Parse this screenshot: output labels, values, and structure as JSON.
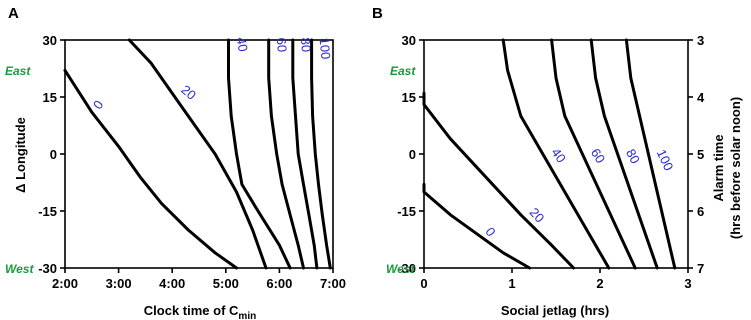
{
  "colors": {
    "curve": "#000000",
    "curve_label": "#2b2bcc",
    "direction_label": "#1a9a3a"
  },
  "chart_data": [
    {
      "type": "line",
      "panel_label": "A",
      "xlabel": "Clock time of C",
      "xlabel_sub": "min",
      "ylabel": "Δ Longitude",
      "xlim": [
        2,
        7
      ],
      "ylim": [
        -30,
        30
      ],
      "x_ticks": [
        2,
        3,
        4,
        5,
        6,
        7
      ],
      "x_tick_labels": [
        "2:00",
        "3:00",
        "4:00",
        "5:00",
        "6:00",
        "7:00"
      ],
      "y_ticks": [
        30,
        15,
        0,
        -15,
        -30
      ],
      "y_tick_labels": [
        "30",
        "15",
        "0",
        "-15",
        "-30"
      ],
      "annotations": [
        "East",
        "West"
      ],
      "series": [
        {
          "name": "0",
          "x": [
            2.0,
            2.5,
            3.0,
            3.4,
            3.8,
            4.3,
            4.8,
            5.2
          ],
          "y": [
            22,
            11,
            2,
            -6,
            -13,
            -20,
            -26,
            -30
          ]
        },
        {
          "name": "20",
          "x": [
            3.2,
            3.6,
            4.0,
            4.4,
            4.8,
            5.2,
            5.5,
            5.75
          ],
          "y": [
            30,
            24,
            16,
            8,
            0,
            -10,
            -20,
            -30
          ]
        },
        {
          "name": "40",
          "x": [
            5.05,
            5.05,
            5.1,
            5.2,
            5.3,
            5.6,
            6.0,
            6.2
          ],
          "y": [
            30,
            20,
            10,
            0,
            -8,
            -15,
            -24,
            -30
          ]
        },
        {
          "name": "60",
          "x": [
            5.8,
            5.8,
            5.85,
            5.95,
            6.05,
            6.2,
            6.35,
            6.45
          ],
          "y": [
            30,
            20,
            10,
            0,
            -8,
            -16,
            -24,
            -30
          ]
        },
        {
          "name": "80",
          "x": [
            6.25,
            6.25,
            6.3,
            6.35,
            6.45,
            6.55,
            6.65,
            6.7
          ],
          "y": [
            30,
            20,
            10,
            0,
            -8,
            -16,
            -24,
            -30
          ]
        },
        {
          "name": "100",
          "x": [
            6.6,
            6.6,
            6.62,
            6.67,
            6.73,
            6.8,
            6.88,
            6.95
          ],
          "y": [
            30,
            20,
            10,
            0,
            -8,
            -16,
            -24,
            -30
          ]
        }
      ]
    },
    {
      "type": "line",
      "panel_label": "B",
      "xlabel": "Social jetlag (hrs)",
      "ylabel": "Δ Longitude",
      "y2label": "Alarm time",
      "y2label_line2": "(hrs before solar noon)",
      "xlim": [
        0,
        3
      ],
      "ylim": [
        -30,
        30
      ],
      "x_ticks": [
        0,
        1,
        2,
        3
      ],
      "x_tick_labels": [
        "0",
        "1",
        "2",
        "3"
      ],
      "y_ticks": [
        30,
        15,
        0,
        -15,
        -30
      ],
      "y_tick_labels": [
        "30",
        "15",
        "0",
        "-15",
        "-30"
      ],
      "y2_ticks": [
        3,
        4,
        5,
        6,
        7
      ],
      "y2_tick_labels": [
        "3",
        "4",
        "5",
        "6",
        "7"
      ],
      "annotations": [
        "East",
        "West"
      ],
      "series": [
        {
          "name": "0",
          "x": [
            0.0,
            0.0,
            0.3,
            0.6,
            0.9,
            1.2
          ],
          "y": [
            -8,
            -10,
            -16,
            -21,
            -26,
            -30
          ]
        },
        {
          "name": "20",
          "x": [
            0.0,
            0.0,
            0.3,
            0.7,
            1.1,
            1.45,
            1.7
          ],
          "y": [
            16,
            13,
            4,
            -6,
            -16,
            -24,
            -30
          ]
        },
        {
          "name": "40",
          "x": [
            0.9,
            0.95,
            1.1,
            1.35,
            1.6,
            1.85,
            2.1
          ],
          "y": [
            30,
            22,
            10,
            0,
            -10,
            -20,
            -30
          ]
        },
        {
          "name": "60",
          "x": [
            1.45,
            1.5,
            1.6,
            1.8,
            2.0,
            2.2,
            2.4
          ],
          "y": [
            30,
            20,
            10,
            0,
            -10,
            -20,
            -30
          ]
        },
        {
          "name": "80",
          "x": [
            1.9,
            1.95,
            2.05,
            2.2,
            2.35,
            2.5,
            2.65
          ],
          "y": [
            30,
            20,
            10,
            0,
            -10,
            -20,
            -30
          ]
        },
        {
          "name": "100",
          "x": [
            2.3,
            2.35,
            2.45,
            2.55,
            2.65,
            2.75,
            2.85
          ],
          "y": [
            30,
            20,
            10,
            0,
            -10,
            -20,
            -30
          ]
        }
      ]
    }
  ]
}
